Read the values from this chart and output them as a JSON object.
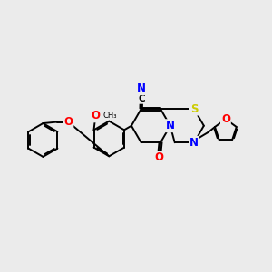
{
  "bg_color": "#ebebeb",
  "bond_color": "#000000",
  "bond_width": 1.4,
  "atom_colors": {
    "N": "#0000ff",
    "O": "#ff0000",
    "S": "#cccc00",
    "C": "#000000"
  },
  "font_size_atom": 8.5
}
